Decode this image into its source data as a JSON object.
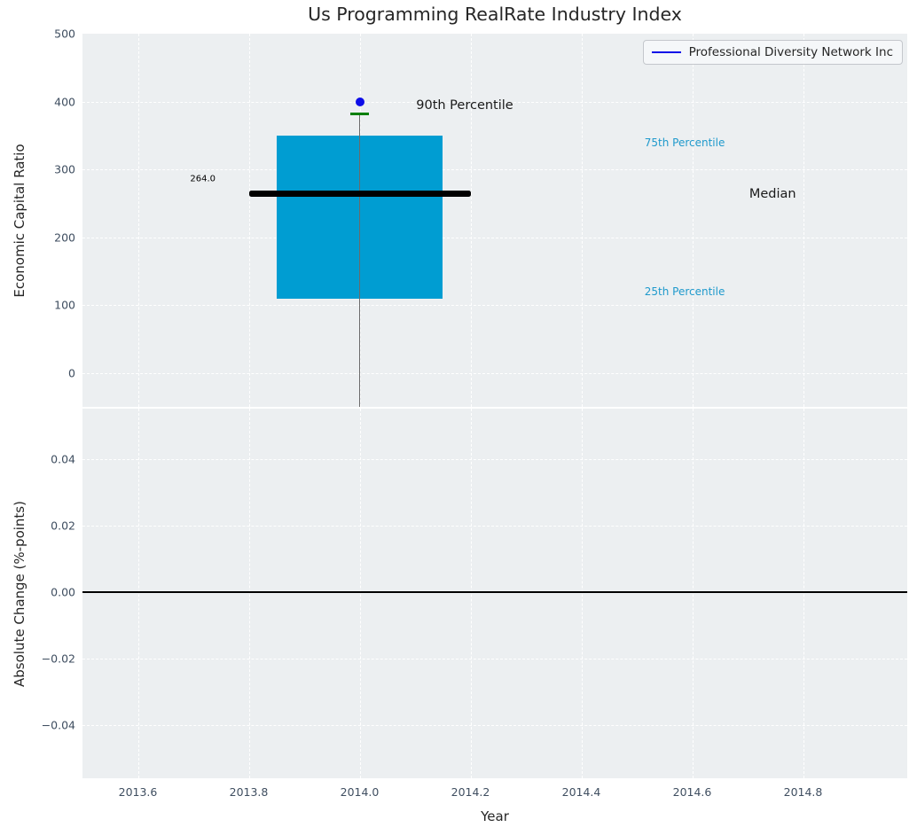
{
  "figure_title": "Us Programming RealRate Industry Index",
  "legend": {
    "label": "Professional Diversity Network Inc"
  },
  "colors": {
    "axes_background": "#eceff1",
    "grid": "#ffffff",
    "box_fill": "#009dd2",
    "percentile_label": "#1e99cc",
    "median_line": "#000000",
    "p90_cap": "#007f00",
    "company_marker": "#0d0de8",
    "whisker": "#6b6b6b",
    "tick_label": "#3f4e60",
    "text": "#262626"
  },
  "chart_data": [
    {
      "type": "box",
      "title": "Us Programming RealRate Industry Index",
      "ylabel": "Economic Capital Ratio",
      "legend": [
        "Professional Diversity Network Inc"
      ],
      "legend_position": "upper right",
      "grid": true,
      "x": 2014.0,
      "box": {
        "p25": 110,
        "median": 264.0,
        "p75": 350,
        "p90": 382,
        "company_value": 400,
        "box_half_width": 0.15,
        "median_half_width": 0.2,
        "cap_half_width": 0.017,
        "whisker_clipped_at_bottom": true
      },
      "ylim": [
        -50,
        500
      ],
      "yticks": [
        500,
        400,
        300,
        200,
        100,
        0
      ],
      "ytick_labels": [
        "500",
        "400",
        "300",
        "200",
        "100",
        "0"
      ],
      "xlim": [
        2013.5,
        2014.988
      ],
      "xticks": [
        2013.6,
        2013.8,
        2014.0,
        2014.2,
        2014.4,
        2014.6,
        2014.8
      ],
      "annotations": {
        "p90_label": "90th Percentile",
        "p75_label": "75th Percentile",
        "median_label": "Median",
        "p25_label": "25th Percentile",
        "median_value_label": "264.0"
      }
    },
    {
      "type": "line",
      "ylabel": "Absolute Change (%-points)",
      "xlabel": "Year",
      "grid": true,
      "series": [
        {
          "name": "Professional Diversity Network Inc",
          "x": [],
          "y": []
        }
      ],
      "zero_line": 0.0,
      "ylim": [
        -0.056,
        0.0552
      ],
      "yticks": [
        0.04,
        0.02,
        0.0,
        -0.02,
        -0.04
      ],
      "ytick_labels": [
        "0.04",
        "0.02",
        "0.00",
        "−0.02",
        "−0.04"
      ],
      "xlim": [
        2013.5,
        2014.988
      ],
      "xticks": [
        2013.6,
        2013.8,
        2014.0,
        2014.2,
        2014.4,
        2014.6,
        2014.8
      ],
      "xtick_labels": [
        "2013.6",
        "2013.8",
        "2014.0",
        "2014.2",
        "2014.4",
        "2014.6",
        "2014.8"
      ]
    }
  ]
}
